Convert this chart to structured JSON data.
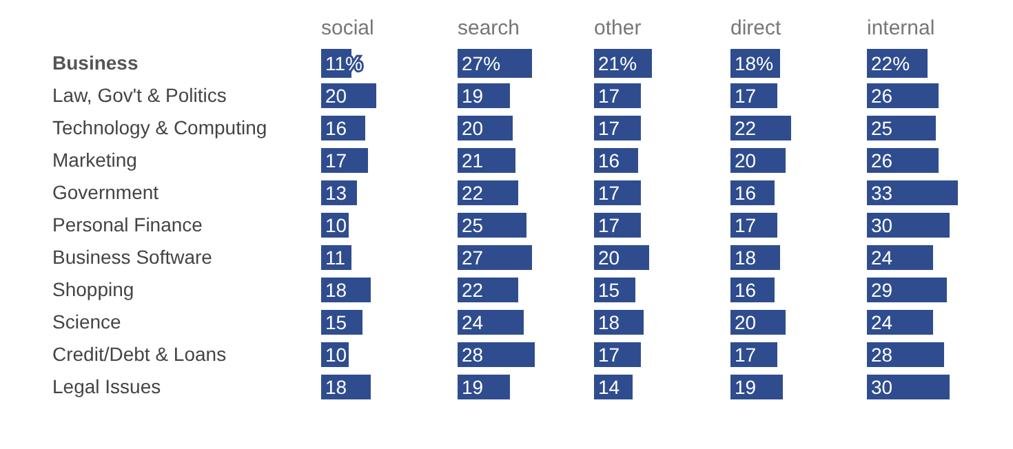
{
  "chart_data": [
    {
      "type": "bar",
      "orientation": "horizontal",
      "title": "social",
      "tick_labels": "y",
      "color": "#2f4d8e",
      "categories": [
        "Business",
        "Law, Gov't & Politics",
        "Technology & Computing",
        "Marketing",
        "Government",
        "Personal Finance",
        "Business Software",
        "Shopping",
        "Science",
        "Credit/Debt & Loans",
        "Legal Issues"
      ],
      "values": [
        11,
        20,
        16,
        17,
        13,
        10,
        11,
        18,
        15,
        10,
        18
      ],
      "value_labels": [
        "11%",
        "20",
        "16",
        "17",
        "13",
        "10",
        "11",
        "18",
        "15",
        "10",
        "18"
      ]
    },
    {
      "type": "bar",
      "orientation": "horizontal",
      "title": "search",
      "tick_labels": false,
      "color": "#2f4d8e",
      "categories": [
        null,
        null,
        null,
        null,
        null,
        null,
        null,
        null,
        null,
        null,
        null
      ],
      "values": [
        27,
        19,
        20,
        21,
        22,
        25,
        27,
        22,
        24,
        28,
        19
      ],
      "value_labels": [
        "27%",
        "19",
        "20",
        "21",
        "22",
        "25",
        "27",
        "22",
        "24",
        "28",
        "19"
      ]
    },
    {
      "type": "bar",
      "orientation": "horizontal",
      "title": "other",
      "tick_labels": false,
      "color": "#2f4d8e",
      "categories": [
        null,
        null,
        null,
        null,
        null,
        null,
        null,
        null,
        null,
        null,
        null
      ],
      "values": [
        21,
        17,
        17,
        16,
        17,
        17,
        20,
        15,
        18,
        17,
        14
      ],
      "value_labels": [
        "21%",
        "17",
        "17",
        "16",
        "17",
        "17",
        "20",
        "15",
        "18",
        "17",
        "14"
      ]
    },
    {
      "type": "bar",
      "orientation": "horizontal",
      "title": "direct",
      "tick_labels": false,
      "color": "#2f4d8e",
      "categories": [
        null,
        null,
        null,
        null,
        null,
        null,
        null,
        null,
        null,
        null,
        null
      ],
      "values": [
        18,
        17,
        22,
        20,
        16,
        17,
        18,
        16,
        20,
        17,
        19
      ],
      "value_labels": [
        "18%",
        "17",
        "22",
        "20",
        "16",
        "17",
        "18",
        "16",
        "20",
        "17",
        "19"
      ]
    },
    {
      "type": "bar",
      "orientation": "horizontal",
      "title": "internal",
      "tick_labels": false,
      "color": "#2f4d8e",
      "categories": [
        null,
        null,
        null,
        null,
        null,
        null,
        null,
        null,
        null,
        null,
        null
      ],
      "values": [
        22,
        26,
        25,
        26,
        33,
        30,
        24,
        29,
        24,
        28,
        30
      ],
      "value_labels": [
        "22%",
        "26",
        "25",
        "26",
        "33",
        "30",
        "24",
        "29",
        "24",
        "28",
        "30"
      ]
    }
  ]
}
